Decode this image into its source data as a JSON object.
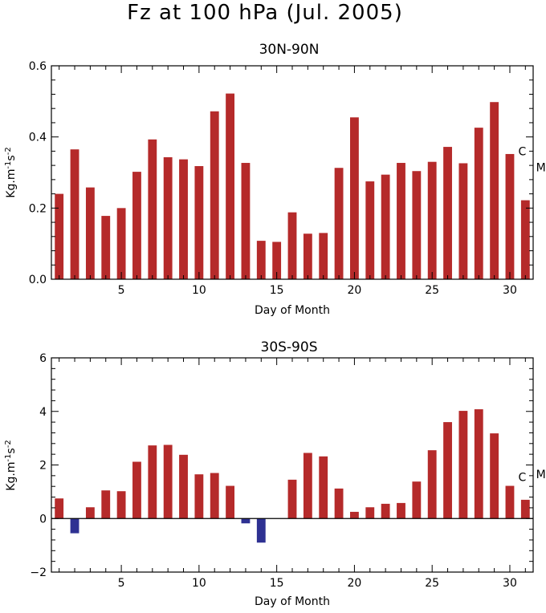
{
  "title": "Fz at 100 hPa (Jul. 2005)",
  "colors": {
    "positive": "#b52a2a",
    "negative": "#2e3192"
  },
  "chart_data": [
    {
      "type": "bar",
      "title": "30N-90N",
      "xlabel": "Day of Month",
      "ylabel_main": "Kg.m",
      "ylabel_sup1": "-1",
      "ylabel_mid": "s",
      "ylabel_sup2": "-2",
      "xlim": [
        0.5,
        31.5
      ],
      "ylim": [
        0.0,
        0.6
      ],
      "xticks": [
        5,
        10,
        15,
        20,
        25,
        30
      ],
      "yticks": [
        0.0,
        0.2,
        0.4,
        0.6
      ],
      "ytick_labels": [
        "0.0",
        "0.2",
        "0.4",
        "0.6"
      ],
      "x": [
        1,
        2,
        3,
        4,
        5,
        6,
        7,
        8,
        9,
        10,
        11,
        12,
        13,
        14,
        15,
        16,
        17,
        18,
        19,
        20,
        21,
        22,
        23,
        24,
        25,
        26,
        27,
        28,
        29,
        30,
        31
      ],
      "values": [
        0.24,
        0.365,
        0.258,
        0.178,
        0.2,
        0.302,
        0.393,
        0.343,
        0.337,
        0.318,
        0.472,
        0.522,
        0.327,
        0.108,
        0.105,
        0.188,
        0.128,
        0.13,
        0.313,
        0.455,
        0.275,
        0.294,
        0.327,
        0.304,
        0.33,
        0.372,
        0.326,
        0.426,
        0.498,
        0.352,
        0.222
      ],
      "annotations": [
        {
          "text": "C",
          "x": 30.8,
          "y": 0.36
        },
        {
          "text": "M",
          "x": 32.0,
          "y": 0.315
        }
      ]
    },
    {
      "type": "bar",
      "title": "30S-90S",
      "xlabel": "Day of Month",
      "ylabel_main": "Kg.m",
      "ylabel_sup1": "-1",
      "ylabel_mid": "s",
      "ylabel_sup2": "-2",
      "xlim": [
        0.5,
        31.5
      ],
      "ylim": [
        -2.0,
        6.0
      ],
      "xticks": [
        5,
        10,
        15,
        20,
        25,
        30
      ],
      "yticks": [
        -2,
        0,
        2,
        4,
        6
      ],
      "ytick_labels": [
        "−2",
        "0",
        "2",
        "4",
        "6"
      ],
      "x": [
        1,
        2,
        3,
        4,
        5,
        6,
        7,
        8,
        9,
        10,
        11,
        12,
        13,
        14,
        15,
        16,
        17,
        18,
        19,
        20,
        21,
        22,
        23,
        24,
        25,
        26,
        27,
        28,
        29,
        30,
        31
      ],
      "values": [
        0.75,
        -0.55,
        0.42,
        1.05,
        1.02,
        2.12,
        2.73,
        2.75,
        2.38,
        1.65,
        1.7,
        1.22,
        -0.18,
        -0.9,
        0.0,
        1.45,
        2.45,
        2.32,
        1.12,
        0.25,
        0.42,
        0.55,
        0.58,
        1.38,
        2.55,
        3.6,
        4.02,
        4.08,
        3.18,
        1.22,
        0.7
      ],
      "annotations": [
        {
          "text": "C",
          "x": 30.8,
          "y": 1.55
        },
        {
          "text": "M",
          "x": 32.0,
          "y": 1.65
        }
      ]
    }
  ]
}
